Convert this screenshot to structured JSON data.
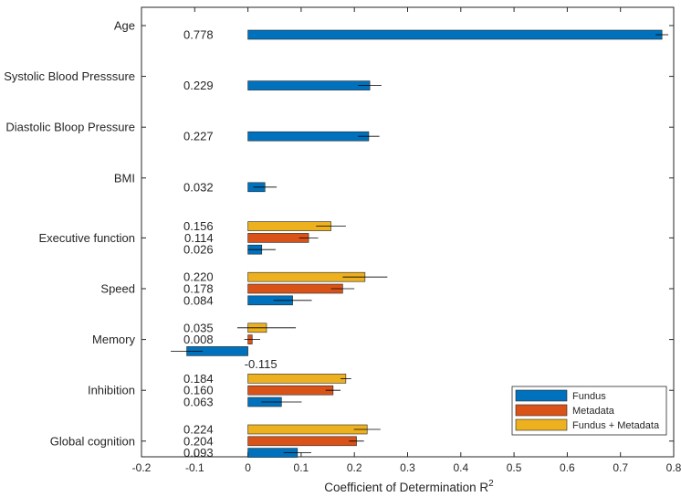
{
  "chart_data": {
    "type": "bar",
    "orientation": "horizontal",
    "xlabel": "Coefficient of Determination R",
    "xlabel_superscript": "2",
    "xlim": [
      -0.2,
      0.8
    ],
    "xticks": [
      -0.2,
      -0.1,
      0,
      0.1,
      0.2,
      0.3,
      0.4,
      0.5,
      0.6,
      0.7,
      0.8
    ],
    "xtick_labels": [
      "-0.2",
      "-0.1",
      "0",
      "0.1",
      "0.2",
      "0.3",
      "0.4",
      "0.5",
      "0.6",
      "0.7",
      "0.8"
    ],
    "grid": false,
    "legend_position": "bottom-right",
    "series": [
      {
        "name": "Fundus",
        "color": "#0072BD"
      },
      {
        "name": "Metadata",
        "color": "#D95319"
      },
      {
        "name": "Fundus + Metadata",
        "color": "#EDB120"
      }
    ],
    "categories": [
      {
        "label": "Age",
        "bars": [
          {
            "series": "Fundus",
            "value": 0.778,
            "label": "0.778",
            "err": 0.012
          }
        ]
      },
      {
        "label": "Systolic Blood Presssure",
        "bars": [
          {
            "series": "Fundus",
            "value": 0.229,
            "label": "0.229",
            "err": 0.022
          }
        ]
      },
      {
        "label": "Diastolic Bloop Pressure",
        "bars": [
          {
            "series": "Fundus",
            "value": 0.227,
            "label": "0.227",
            "err": 0.02
          }
        ]
      },
      {
        "label": "BMI",
        "bars": [
          {
            "series": "Fundus",
            "value": 0.032,
            "label": "0.032",
            "err": 0.022
          }
        ]
      },
      {
        "label": "Executive function",
        "bars": [
          {
            "series": "Fundus + Metadata",
            "value": 0.156,
            "label": "0.156",
            "err": 0.028
          },
          {
            "series": "Metadata",
            "value": 0.114,
            "label": "0.114",
            "err": 0.018
          },
          {
            "series": "Fundus",
            "value": 0.026,
            "label": "0.026",
            "err": 0.026
          }
        ]
      },
      {
        "label": "Speed",
        "bars": [
          {
            "series": "Fundus + Metadata",
            "value": 0.22,
            "label": "0.220",
            "err": 0.042
          },
          {
            "series": "Metadata",
            "value": 0.178,
            "label": "0.178",
            "err": 0.022
          },
          {
            "series": "Fundus",
            "value": 0.084,
            "label": "0.084",
            "err": 0.036
          }
        ]
      },
      {
        "label": "Memory",
        "bars": [
          {
            "series": "Fundus + Metadata",
            "value": 0.035,
            "label": "0.035",
            "err": 0.055
          },
          {
            "series": "Metadata",
            "value": 0.008,
            "label": "0.008",
            "err": 0.015
          },
          {
            "series": "Fundus",
            "value": -0.115,
            "label": "-0.115",
            "err": 0.03,
            "label_side": "right"
          }
        ]
      },
      {
        "label": "Inhibition",
        "bars": [
          {
            "series": "Fundus + Metadata",
            "value": 0.184,
            "label": "0.184",
            "err": 0.01
          },
          {
            "series": "Metadata",
            "value": 0.16,
            "label": "0.160",
            "err": 0.014
          },
          {
            "series": "Fundus",
            "value": 0.063,
            "label": "0.063",
            "err": 0.038
          }
        ]
      },
      {
        "label": "Global cognition",
        "bars": [
          {
            "series": "Fundus + Metadata",
            "value": 0.224,
            "label": "0.224",
            "err": 0.025
          },
          {
            "series": "Metadata",
            "value": 0.204,
            "label": "0.204",
            "err": 0.014
          },
          {
            "series": "Fundus",
            "value": 0.093,
            "label": "0.093",
            "err": 0.026
          }
        ]
      }
    ]
  }
}
